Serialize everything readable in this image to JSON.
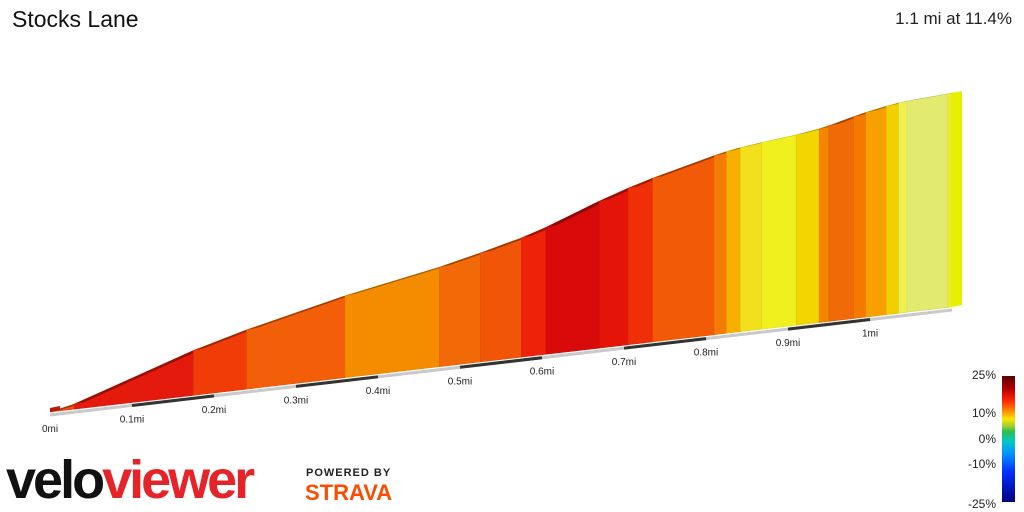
{
  "header": {
    "title": "Stocks Lane",
    "summary": "1.1 mi at 11.4%"
  },
  "chart_data": {
    "type": "area",
    "title": "Stocks Lane",
    "x_unit": "mi",
    "x_ticks": [
      "0mi",
      "0.1mi",
      "0.2mi",
      "0.3mi",
      "0.4mi",
      "0.5mi",
      "0.6mi",
      "0.7mi",
      "0.8mi",
      "0.9mi",
      "1mi"
    ],
    "xlim": [
      0,
      1.1
    ],
    "segments": [
      {
        "x0": 0.0,
        "x1": 0.03,
        "gradient": 10,
        "color": "#ee4a10"
      },
      {
        "x0": 0.03,
        "x1": 0.175,
        "gradient": 16,
        "color": "#e41a0c"
      },
      {
        "x0": 0.175,
        "x1": 0.24,
        "gradient": 13,
        "color": "#f03d08"
      },
      {
        "x0": 0.24,
        "x1": 0.36,
        "gradient": 11,
        "color": "#f25f08"
      },
      {
        "x0": 0.36,
        "x1": 0.475,
        "gradient": 9,
        "color": "#f58c00"
      },
      {
        "x0": 0.475,
        "x1": 0.525,
        "gradient": 11,
        "color": "#f26908"
      },
      {
        "x0": 0.525,
        "x1": 0.575,
        "gradient": 12,
        "color": "#f05508"
      },
      {
        "x0": 0.575,
        "x1": 0.605,
        "gradient": 15,
        "color": "#ee2208"
      },
      {
        "x0": 0.605,
        "x1": 0.67,
        "gradient": 18,
        "color": "#d80a0a"
      },
      {
        "x0": 0.67,
        "x1": 0.705,
        "gradient": 16,
        "color": "#e41508"
      },
      {
        "x0": 0.705,
        "x1": 0.735,
        "gradient": 14,
        "color": "#ef2f08"
      },
      {
        "x0": 0.735,
        "x1": 0.81,
        "gradient": 12,
        "color": "#f25a08"
      },
      {
        "x0": 0.81,
        "x1": 0.825,
        "gradient": 10,
        "color": "#f57c04"
      },
      {
        "x0": 0.825,
        "x1": 0.842,
        "gradient": 8,
        "color": "#f7b000"
      },
      {
        "x0": 0.842,
        "x1": 0.868,
        "gradient": 6,
        "color": "#f2e01c"
      },
      {
        "x0": 0.868,
        "x1": 0.91,
        "gradient": 5,
        "color": "#f0f01e"
      },
      {
        "x0": 0.91,
        "x1": 0.938,
        "gradient": 7,
        "color": "#f2d600"
      },
      {
        "x0": 0.938,
        "x1": 0.95,
        "gradient": 10,
        "color": "#f58400"
      },
      {
        "x0": 0.95,
        "x1": 0.98,
        "gradient": 12,
        "color": "#f06a08"
      },
      {
        "x0": 0.98,
        "x1": 0.995,
        "gradient": 11,
        "color": "#f57800"
      },
      {
        "x0": 0.995,
        "x1": 1.02,
        "gradient": 9,
        "color": "#f7a000"
      },
      {
        "x0": 1.02,
        "x1": 1.035,
        "gradient": 7,
        "color": "#f2cf00"
      },
      {
        "x0": 1.035,
        "x1": 1.045,
        "gradient": 5,
        "color": "#eef050"
      },
      {
        "x0": 1.045,
        "x1": 1.095,
        "gradient": 3,
        "color": "#e3ea70"
      },
      {
        "x0": 1.095,
        "x1": 1.1,
        "gradient": 4,
        "color": "#eaf028"
      }
    ],
    "legend": {
      "title": "",
      "labels": [
        "25%",
        "10%",
        "0%",
        "-10%",
        "-25%"
      ],
      "values": [
        25,
        10,
        0,
        -10,
        -25
      ]
    }
  },
  "branding": {
    "velo": "velo",
    "viewer": "viewer",
    "powered_by": "POWERED BY",
    "strava": "STRAVA"
  }
}
